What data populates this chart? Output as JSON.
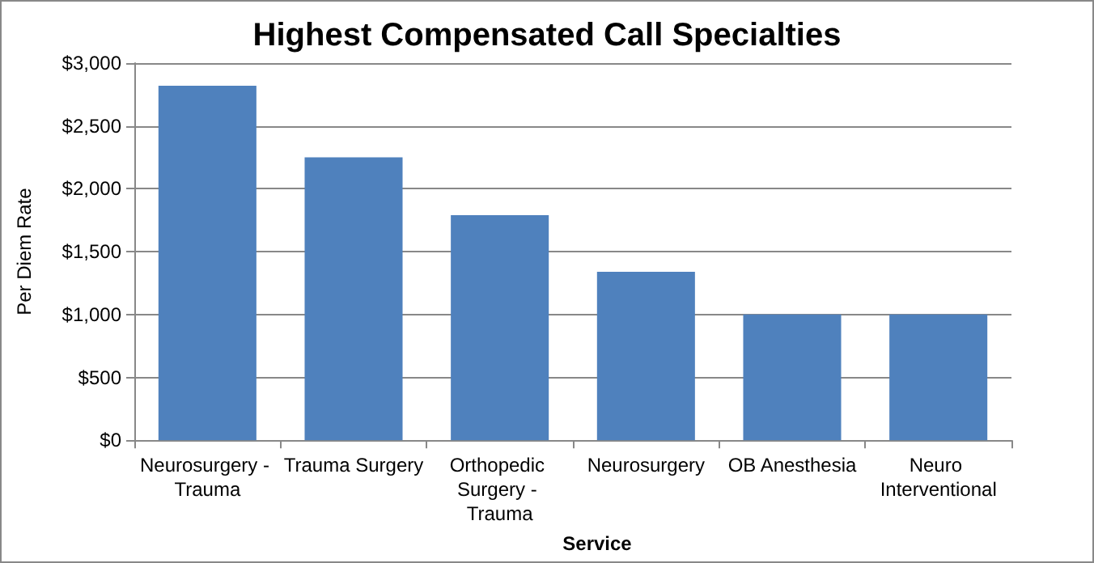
{
  "chart_data": {
    "type": "bar",
    "title": "Highest Compensated Call Specialties",
    "xlabel": "Service",
    "ylabel": "Per Diem Rate",
    "categories": [
      "Neurosurgery - Trauma",
      "Trauma Surgery",
      "Orthopedic Surgery - Trauma",
      "Neurosurgery",
      "OB Anesthesia",
      "Neuro Interventional"
    ],
    "values": [
      2820,
      2250,
      1790,
      1340,
      1000,
      1000
    ],
    "color": "#4f81bd",
    "ylim": [
      0,
      3000
    ],
    "yticks": [
      {
        "value": 0,
        "label": "$0"
      },
      {
        "value": 500,
        "label": "$500"
      },
      {
        "value": 1000,
        "label": "$1,000"
      },
      {
        "value": 1500,
        "label": "$1,500"
      },
      {
        "value": 2000,
        "label": "$2,000"
      },
      {
        "value": 2500,
        "label": "$2,500"
      },
      {
        "value": 3000,
        "label": "$3,000"
      }
    ],
    "grid": "y"
  }
}
